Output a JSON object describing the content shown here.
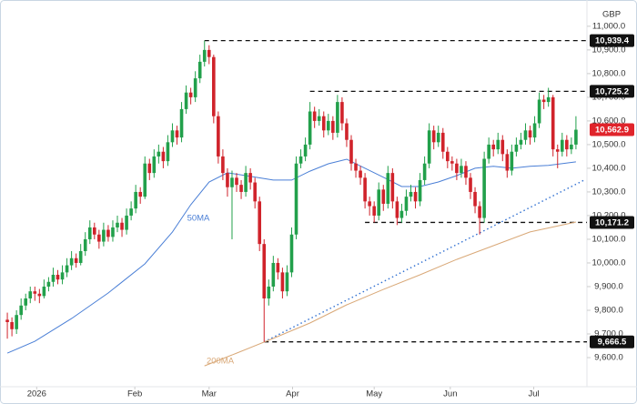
{
  "chart_data": {
    "type": "candlestick",
    "currency": "GBP",
    "up_color": "#22a04b",
    "down_color": "#d0232b",
    "xlim": [
      -1.6,
      126.4
    ],
    "ylim": [
      9477,
      11111
    ],
    "xticks": [
      {
        "value": 6.4,
        "label": "2026"
      },
      {
        "value": 27.8,
        "label": "Feb"
      },
      {
        "value": 44,
        "label": "Mar"
      },
      {
        "value": 62.2,
        "label": "Apr"
      },
      {
        "value": 80,
        "label": "May"
      },
      {
        "value": 96.6,
        "label": "Jun"
      },
      {
        "value": 114.8,
        "label": "Jul"
      }
    ],
    "yticks": [
      {
        "value": 9600,
        "label": "9,600.0"
      },
      {
        "value": 9700,
        "label": "9,700.0"
      },
      {
        "value": 9800,
        "label": "9,800.0"
      },
      {
        "value": 9900,
        "label": "9,900.0"
      },
      {
        "value": 10000,
        "label": "10,000.0"
      },
      {
        "value": 10100,
        "label": "10,100.0"
      },
      {
        "value": 10200,
        "label": "10,200.0"
      },
      {
        "value": 10300,
        "label": "10,300.0"
      },
      {
        "value": 10400,
        "label": "10,400.0"
      },
      {
        "value": 10500,
        "label": "10,500.0"
      },
      {
        "value": 10600,
        "label": "10,600.0"
      },
      {
        "value": 10700,
        "label": "10,700.0"
      },
      {
        "value": 10800,
        "label": "10,800.0"
      },
      {
        "value": 10900,
        "label": "10,900.0"
      },
      {
        "value": 11000,
        "label": "11,000.0"
      }
    ],
    "ohlc": [
      [
        9760,
        9790,
        9680,
        9750
      ],
      [
        9750,
        9770,
        9690,
        9720
      ],
      [
        9720,
        9800,
        9700,
        9780
      ],
      [
        9780,
        9850,
        9760,
        9820
      ],
      [
        9820,
        9870,
        9800,
        9850
      ],
      [
        9850,
        9900,
        9830,
        9880
      ],
      [
        9880,
        9900,
        9840,
        9870
      ],
      [
        9870,
        9890,
        9830,
        9860
      ],
      [
        9860,
        9930,
        9850,
        9900
      ],
      [
        9900,
        9940,
        9880,
        9920
      ],
      [
        9920,
        9980,
        9900,
        9950
      ],
      [
        9950,
        9970,
        9910,
        9930
      ],
      [
        9930,
        9990,
        9910,
        9960
      ],
      [
        9960,
        10020,
        9940,
        9990
      ],
      [
        9990,
        10050,
        9970,
        10020
      ],
      [
        10020,
        10040,
        9980,
        10000
      ],
      [
        10000,
        10080,
        9990,
        10050
      ],
      [
        10050,
        10130,
        10030,
        10100
      ],
      [
        10100,
        10180,
        10080,
        10150
      ],
      [
        10150,
        10170,
        10100,
        10120
      ],
      [
        10120,
        10140,
        10060,
        10090
      ],
      [
        10090,
        10170,
        10070,
        10140
      ],
      [
        10140,
        10160,
        10090,
        10110
      ],
      [
        10110,
        10180,
        10090,
        10150
      ],
      [
        10150,
        10200,
        10130,
        10170
      ],
      [
        10170,
        10190,
        10110,
        10140
      ],
      [
        10140,
        10230,
        10120,
        10200
      ],
      [
        10200,
        10260,
        10180,
        10230
      ],
      [
        10230,
        10330,
        10210,
        10300
      ],
      [
        10300,
        10320,
        10250,
        10280
      ],
      [
        10280,
        10450,
        10270,
        10420
      ],
      [
        10420,
        10440,
        10350,
        10380
      ],
      [
        10380,
        10480,
        10360,
        10450
      ],
      [
        10450,
        10500,
        10420,
        10470
      ],
      [
        10470,
        10490,
        10400,
        10430
      ],
      [
        10430,
        10540,
        10410,
        10510
      ],
      [
        10510,
        10590,
        10490,
        10560
      ],
      [
        10560,
        10580,
        10500,
        10530
      ],
      [
        10530,
        10680,
        10510,
        10650
      ],
      [
        10650,
        10750,
        10630,
        10720
      ],
      [
        10720,
        10740,
        10670,
        10700
      ],
      [
        10700,
        10810,
        10680,
        10780
      ],
      [
        10780,
        10880,
        10760,
        10850
      ],
      [
        10850,
        10939.4,
        10830,
        10900
      ],
      [
        10900,
        10920,
        10840,
        10870
      ],
      [
        10870,
        10880,
        10590,
        10620
      ],
      [
        10620,
        10640,
        10420,
        10450
      ],
      [
        10450,
        10480,
        10350,
        10380
      ],
      [
        10380,
        10400,
        10280,
        10320
      ],
      [
        10320,
        10390,
        10100,
        10360
      ],
      [
        10360,
        10380,
        10300,
        10330
      ],
      [
        10330,
        10350,
        10270,
        10300
      ],
      [
        10300,
        10410,
        10280,
        10380
      ],
      [
        10380,
        10400,
        10310,
        10340
      ],
      [
        10340,
        10360,
        10230,
        10260
      ],
      [
        10260,
        10280,
        10050,
        10080
      ],
      [
        10080,
        10100,
        9666.5,
        9850
      ],
      [
        9850,
        9930,
        9820,
        9900
      ],
      [
        9900,
        10030,
        9880,
        10000
      ],
      [
        10000,
        10020,
        9930,
        9960
      ],
      [
        9960,
        9980,
        9850,
        9880
      ],
      [
        9880,
        9990,
        9860,
        9960
      ],
      [
        9960,
        10150,
        9940,
        10120
      ],
      [
        10120,
        10450,
        10100,
        10420
      ],
      [
        10420,
        10480,
        10400,
        10450
      ],
      [
        10450,
        10530,
        10430,
        10500
      ],
      [
        10500,
        10680,
        10480,
        10640
      ],
      [
        10640,
        10660,
        10570,
        10600
      ],
      [
        10600,
        10650,
        10580,
        10620
      ],
      [
        10620,
        10640,
        10530,
        10560
      ],
      [
        10560,
        10630,
        10540,
        10600
      ],
      [
        10600,
        10620,
        10520,
        10550
      ],
      [
        10550,
        10710,
        10530,
        10680
      ],
      [
        10680,
        10700,
        10560,
        10590
      ],
      [
        10590,
        10610,
        10490,
        10520
      ],
      [
        10520,
        10540,
        10390,
        10420
      ],
      [
        10420,
        10440,
        10360,
        10390
      ],
      [
        10390,
        10410,
        10330,
        10360
      ],
      [
        10360,
        10380,
        10230,
        10260
      ],
      [
        10260,
        10280,
        10200,
        10240
      ],
      [
        10240,
        10260,
        10171.2,
        10200
      ],
      [
        10200,
        10340,
        10180,
        10310
      ],
      [
        10310,
        10330,
        10220,
        10250
      ],
      [
        10250,
        10410,
        10230,
        10380
      ],
      [
        10380,
        10400,
        10230,
        10260
      ],
      [
        10260,
        10280,
        10160,
        10190
      ],
      [
        10190,
        10250,
        10170,
        10220
      ],
      [
        10220,
        10310,
        10200,
        10280
      ],
      [
        10280,
        10330,
        10260,
        10300
      ],
      [
        10300,
        10320,
        10230,
        10260
      ],
      [
        10260,
        10380,
        10240,
        10350
      ],
      [
        10350,
        10450,
        10330,
        10420
      ],
      [
        10420,
        10590,
        10400,
        10560
      ],
      [
        10560,
        10580,
        10480,
        10510
      ],
      [
        10510,
        10580,
        10490,
        10550
      ],
      [
        10550,
        10570,
        10440,
        10470
      ],
      [
        10470,
        10490,
        10400,
        10430
      ],
      [
        10430,
        10450,
        10390,
        10420
      ],
      [
        10420,
        10440,
        10350,
        10380
      ],
      [
        10380,
        10440,
        10360,
        10410
      ],
      [
        10410,
        10430,
        10330,
        10360
      ],
      [
        10360,
        10380,
        10270,
        10300
      ],
      [
        10300,
        10320,
        10210,
        10240
      ],
      [
        10240,
        10260,
        10120,
        10190
      ],
      [
        10190,
        10470,
        10170,
        10440
      ],
      [
        10440,
        10530,
        10420,
        10500
      ],
      [
        10500,
        10520,
        10450,
        10480
      ],
      [
        10480,
        10550,
        10460,
        10520
      ],
      [
        10520,
        10540,
        10430,
        10460
      ],
      [
        10460,
        10480,
        10360,
        10390
      ],
      [
        10390,
        10500,
        10370,
        10470
      ],
      [
        10470,
        10530,
        10450,
        10500
      ],
      [
        10500,
        10550,
        10480,
        10520
      ],
      [
        10520,
        10590,
        10500,
        10560
      ],
      [
        10560,
        10580,
        10500,
        10530
      ],
      [
        10530,
        10620,
        10510,
        10590
      ],
      [
        10590,
        10720,
        10570,
        10690
      ],
      [
        10690,
        10710,
        10650,
        10680
      ],
      [
        10680,
        10740,
        10660,
        10700
      ],
      [
        10700,
        10710,
        10450,
        10480
      ],
      [
        10480,
        10500,
        10400,
        10470
      ],
      [
        10470,
        10550,
        10450,
        10520
      ],
      [
        10520,
        10540,
        10450,
        10480
      ],
      [
        10480,
        10530,
        10460,
        10500
      ],
      [
        10500,
        10620,
        10480,
        10562.9
      ]
    ],
    "series": [
      {
        "name": "50MA",
        "color": "#4a7fd6",
        "x": [
          0,
          6,
          14,
          22,
          30,
          36,
          40,
          44,
          48,
          52,
          58,
          62,
          66,
          70,
          74,
          78,
          82,
          86,
          90,
          94,
          98,
          102,
          106,
          110,
          114,
          118,
          124
        ],
        "values": [
          9619,
          9669,
          9765,
          9873,
          9996,
          10131,
          10246,
          10342,
          10381,
          10369,
          10350,
          10350,
          10388,
          10419,
          10438,
          10400,
          10362,
          10323,
          10323,
          10342,
          10369,
          10400,
          10408,
          10400,
          10408,
          10412,
          10427
        ]
      },
      {
        "name": "200MA",
        "color": "#d9a877",
        "x": [
          43,
          50,
          58,
          66,
          74,
          82,
          90,
          98,
          106,
          114,
          124
        ],
        "values": [
          9565,
          9619,
          9681,
          9746,
          9823,
          9888,
          9950,
          10015,
          10073,
          10131,
          10173
        ]
      }
    ],
    "trendline": {
      "color": "#2f6fd1",
      "x": [
        56,
        126
      ],
      "values": [
        9666.5,
        10352
      ]
    },
    "levels": [
      {
        "value": 10939.4,
        "label": "10,939.4",
        "from": 43
      },
      {
        "value": 10725.2,
        "label": "10,725.2",
        "from": 66
      },
      {
        "value": 10171.2,
        "label": "10,171.2",
        "from": 78
      },
      {
        "value": 9666.5,
        "label": "9,666.5",
        "from": 56
      }
    ],
    "last_price": {
      "value": 10562.9,
      "label": "10,562.9",
      "color": "#e0242b"
    }
  }
}
